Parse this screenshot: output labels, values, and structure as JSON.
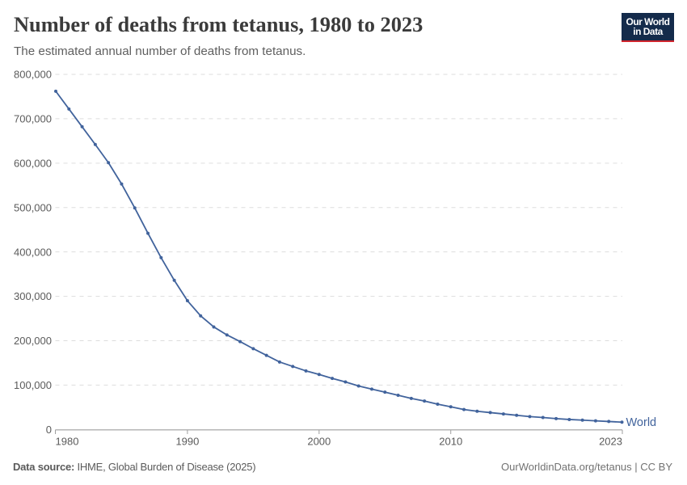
{
  "header": {
    "title": "Number of deaths from tetanus, 1980 to 2023",
    "subtitle": "The estimated annual number of deaths from tetanus."
  },
  "logo": {
    "line1": "Our World",
    "line2": "in Data"
  },
  "chart_data": {
    "type": "line",
    "title": "Number of deaths from tetanus, 1980 to 2023",
    "xlabel": "",
    "ylabel": "",
    "xlim": [
      1980,
      2023
    ],
    "ylim": [
      0,
      800000
    ],
    "grid": "horizontal-dashed",
    "x_ticks": [
      1980,
      1990,
      2000,
      2010,
      2023
    ],
    "y_ticks": [
      0,
      100000,
      200000,
      300000,
      400000,
      500000,
      600000,
      700000,
      800000
    ],
    "x": [
      1980,
      1981,
      1982,
      1983,
      1984,
      1985,
      1986,
      1987,
      1988,
      1989,
      1990,
      1991,
      1992,
      1993,
      1994,
      1995,
      1996,
      1997,
      1998,
      1999,
      2000,
      2001,
      2002,
      2003,
      2004,
      2005,
      2006,
      2007,
      2008,
      2009,
      2010,
      2011,
      2012,
      2013,
      2014,
      2015,
      2016,
      2017,
      2018,
      2019,
      2020,
      2021,
      2022,
      2023
    ],
    "series": [
      {
        "name": "World",
        "color": "#41639c",
        "values": [
          762000,
          722000,
          682000,
          642000,
          601000,
          553000,
          499000,
          442000,
          387000,
          336000,
          290000,
          256000,
          231000,
          213000,
          198000,
          182000,
          167000,
          152000,
          142000,
          132000,
          124000,
          115000,
          107000,
          98000,
          91000,
          84000,
          77000,
          70000,
          64000,
          57000,
          51000,
          45000,
          41000,
          38000,
          35000,
          32000,
          29000,
          27000,
          24500,
          22500,
          21000,
          19500,
          18000,
          16500
        ]
      }
    ]
  },
  "footer": {
    "source_label": "Data source:",
    "source_text": " IHME, Global Burden of Disease (2025)",
    "credit": "OurWorldinData.org/tetanus | CC BY"
  },
  "colors": {
    "line": "#41639c",
    "grid": "#dddddd",
    "axis": "#9e9e9e",
    "tick_label": "#5b5b5b",
    "logo_bg": "#142b4b",
    "logo_red": "#d2262e"
  }
}
